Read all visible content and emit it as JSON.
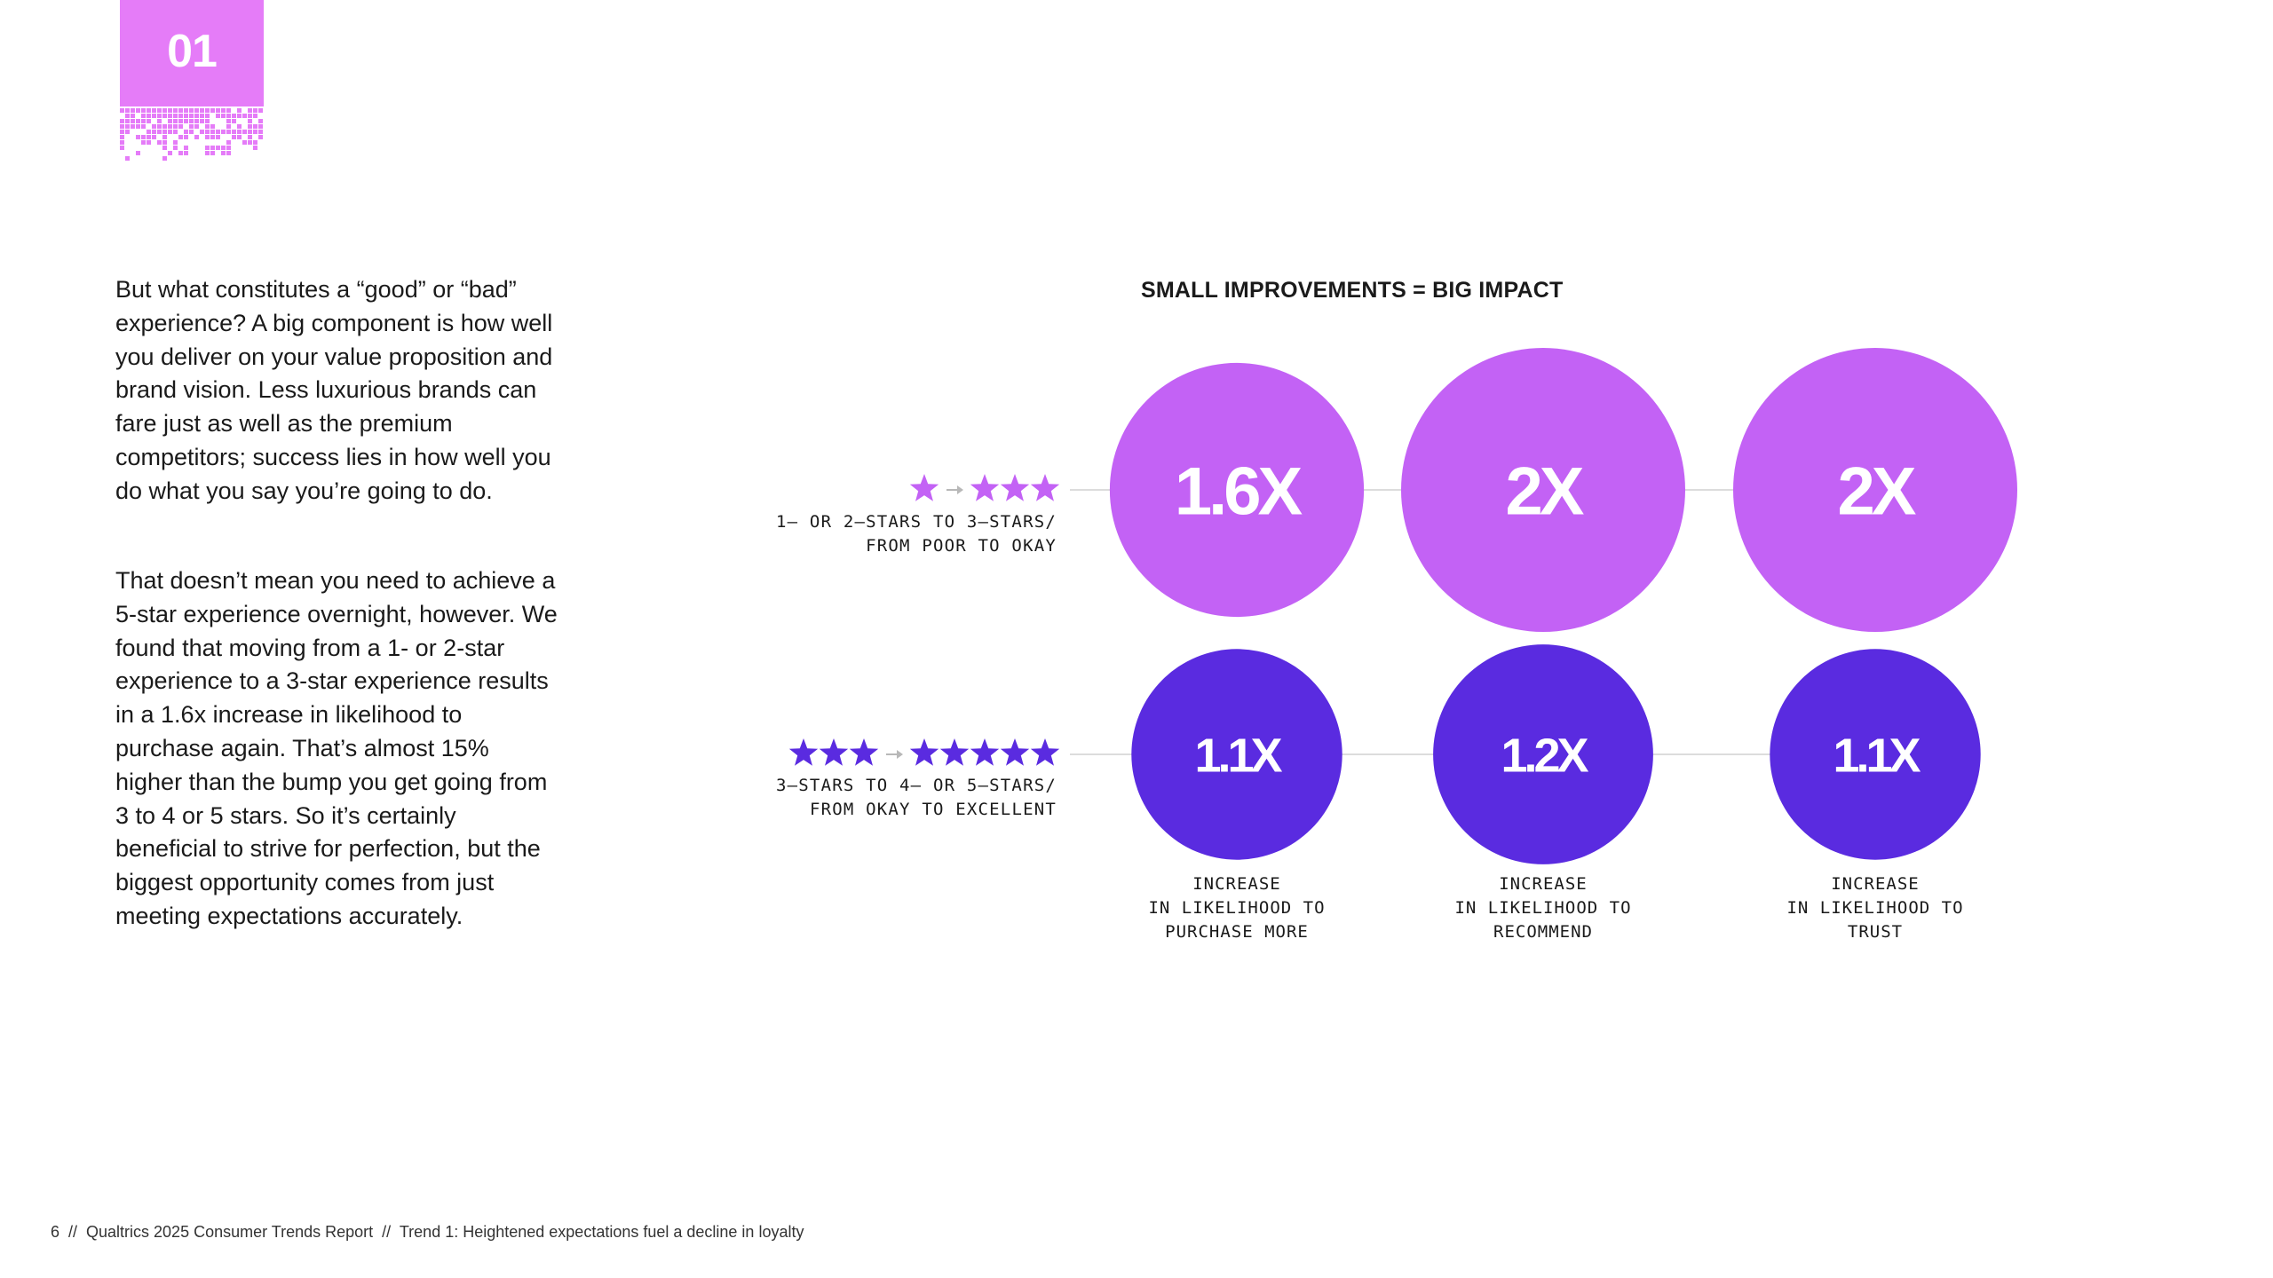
{
  "section": {
    "number": "01",
    "badge_color": "#e57cf8"
  },
  "body": {
    "paragraph1": "But what constitutes a “good” or “bad” experience? A big component is how well you deliver on your value proposition and brand vision. Less luxurious brands can fare just as well as the premium competitors;  success lies in how well you do what you say you’re going to do.",
    "paragraph2": "That doesn’t mean you need to achieve a 5-star experience overnight, however. We found that moving from a 1- or 2-star experience to a 3-star experience results in a 1.6x increase in likelihood to purchase again. That’s almost 15% higher than the bump you get going from 3 to 4 or 5 stars. So it’s certainly beneficial to strive for perfection, but the biggest opportunity comes from just meeting expectations accurately."
  },
  "infographic": {
    "title": "SMALL IMPROVEMENTS = BIG IMPACT",
    "rows": [
      {
        "label_line1": "1– OR 2–STARS TO 3–STARS/",
        "label_line2": "FROM POOR TO OKAY",
        "stars_from": 1,
        "stars_to": 3,
        "star_color": "#c362f5",
        "values": [
          1.6,
          2,
          2
        ],
        "value_labels": [
          "1.6X",
          "2X",
          "2X"
        ],
        "circle_color": "#c362f5"
      },
      {
        "label_line1": "3–STARS TO 4– OR 5–STARS/",
        "label_line2": "FROM OKAY TO EXCELLENT",
        "stars_from": 3,
        "stars_to": 5,
        "star_color": "#5a2be0",
        "values": [
          1.1,
          1.2,
          1.1
        ],
        "value_labels": [
          "1.1X",
          "1.2X",
          "1.1X"
        ],
        "circle_color": "#5a2be0"
      }
    ],
    "columns": [
      {
        "line1": "INCREASE",
        "line2": "IN LIKELIHOOD TO",
        "line3": "PURCHASE MORE"
      },
      {
        "line1": "INCREASE",
        "line2": "IN LIKELIHOOD TO",
        "line3": "RECOMMEND"
      },
      {
        "line1": "INCREASE",
        "line2": "IN LIKELIHOOD TO",
        "line3": "TRUST"
      }
    ],
    "connector_color": "#dcdcdc",
    "arrow_icon": "arrow-right-icon",
    "star_icon": "star-icon"
  },
  "footer": {
    "text": "6  //  Qualtrics 2025 Consumer Trends Report  //  Trend 1: Heightened expectations fuel a decline in loyalty"
  }
}
